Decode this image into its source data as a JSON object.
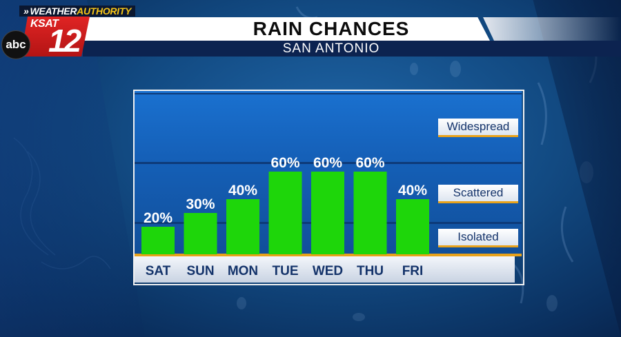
{
  "branding": {
    "authority_prefix": "WEATHER",
    "authority_accent": "AUTHORITY",
    "station": "KSAT",
    "channel": "12",
    "network": "abc"
  },
  "header": {
    "title": "RAIN CHANCES",
    "subtitle": "SAN ANTONIO"
  },
  "levels": [
    "Widespread",
    "Scattered",
    "Isolated"
  ],
  "colors": {
    "bar": "#1ed60a",
    "grid": "#0d3a78",
    "accent": "#e8a21a",
    "brand_red": "#d81e1e"
  },
  "chart_data": {
    "type": "bar",
    "categories": [
      "SAT",
      "SUN",
      "MON",
      "TUE",
      "WED",
      "THU",
      "FRI"
    ],
    "values": [
      20,
      30,
      40,
      60,
      60,
      60,
      40
    ],
    "data_labels": [
      "20%",
      "30%",
      "40%",
      "60%",
      "60%",
      "60%",
      "40%"
    ],
    "title": "RAIN CHANCES",
    "subtitle": "SAN ANTONIO",
    "ylim": [
      0,
      100
    ],
    "grid": true,
    "legend": "none"
  }
}
